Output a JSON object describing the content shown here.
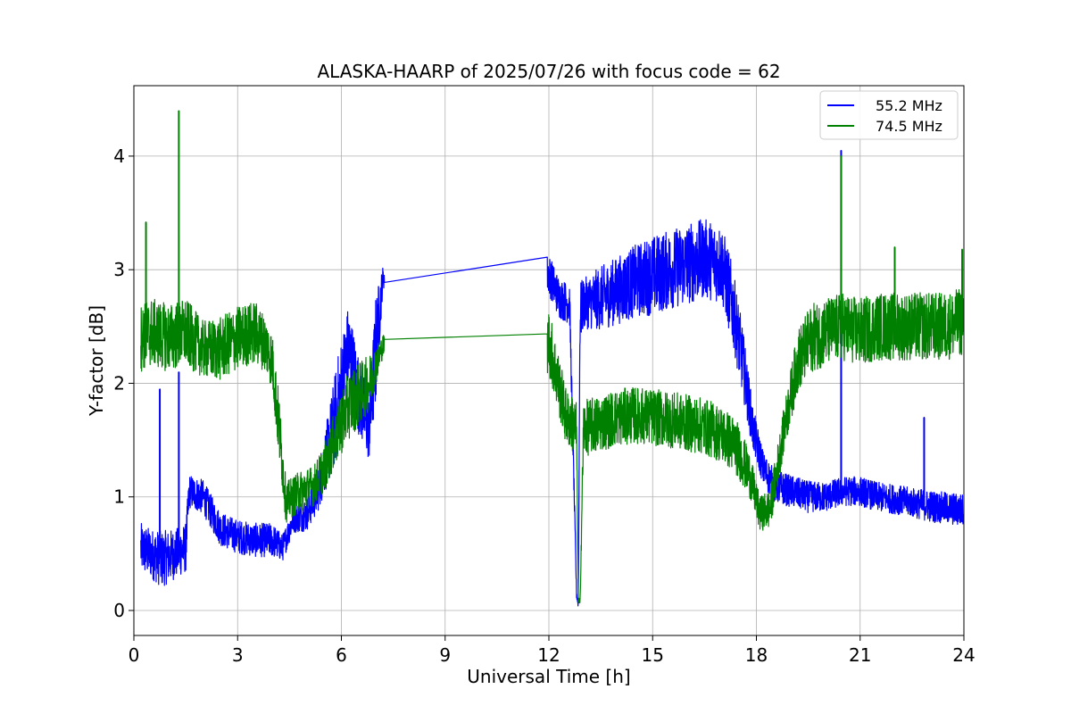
{
  "chart_data": {
    "type": "line",
    "title": "ALASKA-HAARP of 2025/07/26 with focus code = 62",
    "xlabel": "Universal Time [h]",
    "ylabel": "Y-factor [dB]",
    "xlim": [
      0,
      24
    ],
    "ylim": [
      -0.22,
      4.62
    ],
    "xticks": [
      0,
      3,
      6,
      9,
      12,
      15,
      18,
      21,
      24
    ],
    "xtick_labels": [
      "0",
      "3",
      "6",
      "9",
      "12",
      "15",
      "18",
      "21",
      "24"
    ],
    "yticks": [
      0,
      1,
      2,
      3,
      4
    ],
    "ytick_labels": [
      "0",
      "1",
      "2",
      "3",
      "4"
    ],
    "grid": true,
    "legend_position": "top-right",
    "series": [
      {
        "name": "55.2 MHz",
        "color": "#0000ff",
        "x": [
          0.2,
          0.5,
          0.8,
          1.2,
          1.5,
          1.6,
          2.0,
          2.5,
          3.0,
          3.5,
          4.0,
          4.3,
          4.6,
          5.0,
          5.3,
          5.6,
          5.9,
          6.2,
          6.5,
          6.8,
          7.0,
          7.2,
          12.0,
          12.3,
          12.6,
          12.8,
          12.85,
          12.9,
          13.0,
          13.5,
          14.0,
          14.5,
          15.0,
          15.5,
          16.0,
          16.5,
          17.0,
          17.3,
          17.6,
          17.9,
          18.2,
          18.5,
          19.0,
          19.5,
          20.0,
          20.5,
          21.0,
          21.5,
          22.0,
          22.5,
          23.0,
          23.5,
          24.0
        ],
        "y": [
          0.55,
          0.5,
          0.45,
          0.5,
          0.55,
          1.05,
          1.0,
          0.72,
          0.65,
          0.62,
          0.62,
          0.55,
          0.8,
          0.85,
          1.05,
          1.4,
          1.8,
          2.3,
          1.9,
          1.6,
          2.3,
          2.93,
          2.96,
          2.75,
          2.7,
          0.15,
          0.05,
          2.6,
          2.7,
          2.75,
          2.82,
          2.9,
          2.95,
          3.0,
          3.05,
          3.1,
          3.05,
          2.7,
          2.2,
          1.6,
          1.25,
          1.1,
          1.05,
          1.0,
          1.0,
          1.05,
          1.05,
          1.0,
          0.98,
          0.95,
          0.92,
          0.9,
          0.88
        ],
        "noise": [
          0.22,
          0.22,
          0.25,
          0.22,
          0.22,
          0.15,
          0.15,
          0.15,
          0.15,
          0.15,
          0.15,
          0.12,
          0.12,
          0.15,
          0.2,
          0.3,
          0.45,
          0.4,
          0.35,
          0.3,
          0.5,
          0.1,
          0.18,
          0.18,
          0.18,
          0.05,
          0.03,
          0.3,
          0.22,
          0.28,
          0.3,
          0.32,
          0.35,
          0.35,
          0.36,
          0.35,
          0.35,
          0.35,
          0.3,
          0.2,
          0.15,
          0.15,
          0.14,
          0.14,
          0.13,
          0.13,
          0.13,
          0.13,
          0.13,
          0.13,
          0.14,
          0.14,
          0.15
        ],
        "gap": [
          7.25,
          11.95
        ],
        "spikes": [
          {
            "x": 0.75,
            "y": 1.95
          },
          {
            "x": 1.3,
            "y": 2.1
          },
          {
            "x": 20.45,
            "y": 4.05
          },
          {
            "x": 22.85,
            "y": 1.7
          }
        ]
      },
      {
        "name": "74.5 MHz",
        "color": "#008000",
        "x": [
          0.2,
          0.5,
          1.0,
          1.5,
          2.0,
          2.5,
          3.0,
          3.5,
          3.8,
          4.0,
          4.2,
          4.4,
          4.8,
          5.2,
          5.5,
          5.8,
          6.2,
          6.5,
          6.8,
          7.2,
          12.0,
          12.5,
          12.8,
          12.85,
          12.9,
          13.0,
          13.5,
          14.0,
          14.5,
          15.0,
          15.5,
          16.0,
          16.5,
          17.0,
          17.4,
          17.8,
          18.1,
          18.4,
          18.8,
          19.2,
          19.6,
          20.0,
          20.5,
          21.0,
          21.5,
          22.0,
          22.5,
          23.0,
          23.5,
          24.0
        ],
        "y": [
          2.4,
          2.45,
          2.4,
          2.45,
          2.3,
          2.3,
          2.4,
          2.45,
          2.35,
          2.2,
          1.6,
          0.95,
          1.05,
          1.1,
          1.25,
          1.5,
          1.8,
          1.9,
          2.0,
          2.33,
          2.37,
          1.7,
          1.6,
          0.1,
          0.05,
          1.6,
          1.65,
          1.7,
          1.72,
          1.7,
          1.68,
          1.65,
          1.62,
          1.55,
          1.45,
          1.2,
          0.85,
          0.9,
          1.6,
          2.2,
          2.4,
          2.45,
          2.5,
          2.45,
          2.5,
          2.5,
          2.5,
          2.5,
          2.5,
          2.55
        ],
        "noise": [
          0.3,
          0.3,
          0.3,
          0.3,
          0.25,
          0.28,
          0.28,
          0.28,
          0.25,
          0.25,
          0.3,
          0.18,
          0.18,
          0.18,
          0.2,
          0.25,
          0.3,
          0.28,
          0.25,
          0.1,
          0.3,
          0.25,
          0.25,
          0.05,
          0.03,
          0.25,
          0.25,
          0.25,
          0.25,
          0.25,
          0.25,
          0.25,
          0.25,
          0.25,
          0.25,
          0.2,
          0.15,
          0.18,
          0.2,
          0.28,
          0.3,
          0.3,
          0.3,
          0.3,
          0.3,
          0.3,
          0.3,
          0.3,
          0.3,
          0.3
        ],
        "gap": [
          7.25,
          11.95
        ],
        "spikes": [
          {
            "x": 0.35,
            "y": 3.42
          },
          {
            "x": 1.3,
            "y": 4.4
          },
          {
            "x": 20.45,
            "y": 4.0
          },
          {
            "x": 22.0,
            "y": 3.2
          },
          {
            "x": 23.95,
            "y": 3.18
          }
        ]
      }
    ]
  }
}
